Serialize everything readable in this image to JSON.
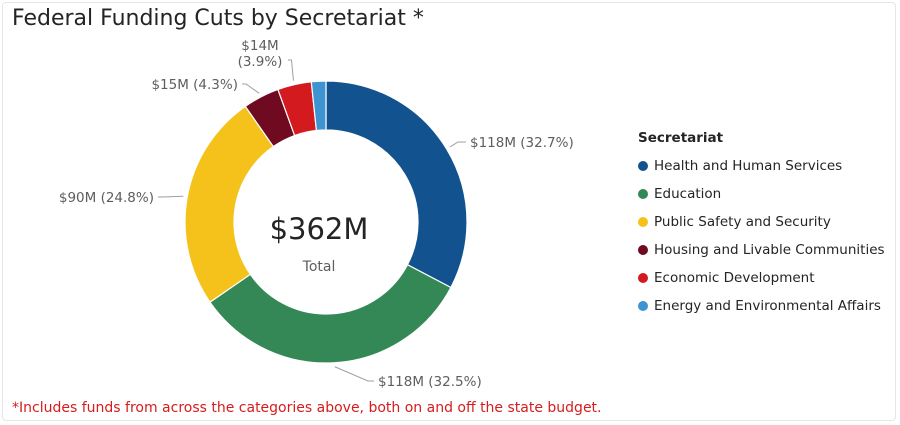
{
  "title": "Federal Funding Cuts by Secretariat *",
  "footnote": "*Includes funds from across the categories above, both on and off the state budget.",
  "chart_data": {
    "type": "pie",
    "variant": "donut",
    "center_value": "$362M",
    "center_label": "Total",
    "legend_title": "Secretariat",
    "legend_position": "right",
    "slices": [
      {
        "name": "Health and Human Services",
        "value": 118,
        "percent": 32.7,
        "label_value": "$118M",
        "label_pct": "(32.7%)",
        "color": "#12528f"
      },
      {
        "name": "Education",
        "value": 118,
        "percent": 32.5,
        "label_value": "$118M",
        "label_pct": "(32.5%)",
        "color": "#348856"
      },
      {
        "name": "Public Safety and Security",
        "value": 90,
        "percent": 24.8,
        "label_value": "$90M",
        "label_pct": "(24.8%)",
        "color": "#f4c21b"
      },
      {
        "name": "Housing and Livable Communities",
        "value": 15,
        "percent": 4.3,
        "label_value": "$15M",
        "label_pct": "(4.3%)",
        "color": "#6f0a21"
      },
      {
        "name": "Economic Development",
        "value": 14,
        "percent": 3.9,
        "label_value": "$14M",
        "label_pct": "(3.9%)",
        "color": "#d21a1f"
      },
      {
        "name": "Energy and Environmental Affairs",
        "value": 6,
        "percent": 1.8,
        "label_value": "",
        "label_pct": "",
        "color": "#3e93d2"
      }
    ]
  }
}
